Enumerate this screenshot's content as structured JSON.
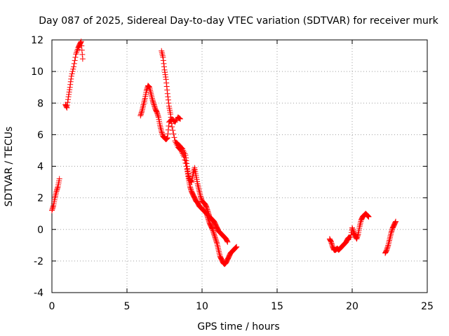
{
  "chart_data": {
    "type": "scatter",
    "title": "Day 087 of 2025, Sidereal Day-to-day VTEC variation (SDTVAR) for receiver murk",
    "xlabel": "GPS time / hours",
    "ylabel": "SDTVAR / TECUs",
    "xlim": [
      0,
      25
    ],
    "ylim": [
      -4,
      12
    ],
    "xticks": [
      0,
      5,
      10,
      15,
      20,
      25
    ],
    "yticks": [
      -4,
      -2,
      0,
      2,
      4,
      6,
      8,
      10,
      12
    ],
    "xtick_labels": [
      "0",
      "5",
      "10",
      "15",
      "20",
      "25"
    ],
    "ytick_labels": [
      "-4",
      "-2",
      "0",
      "2",
      "4",
      "6",
      "8",
      "10",
      "12"
    ],
    "grid": true,
    "marker": "plus",
    "color": "#ff0000",
    "series": [
      {
        "name": "SDTVAR",
        "segments": [
          {
            "x": [
              0.0,
              0.1,
              0.2,
              0.3,
              0.4,
              0.5
            ],
            "y": [
              1.2,
              1.5,
              2.0,
              2.4,
              2.7,
              3.2
            ]
          },
          {
            "x": [
              0.9,
              1.0,
              1.1,
              1.2,
              1.3,
              1.45,
              1.6,
              1.75,
              1.85,
              1.95,
              2.05
            ],
            "y": [
              7.9,
              7.7,
              8.4,
              9.0,
              9.7,
              10.3,
              11.1,
              11.5,
              11.7,
              11.9,
              10.8
            ]
          },
          {
            "x": [
              5.9,
              6.0,
              6.1,
              6.2,
              6.3,
              6.4,
              6.5,
              6.6,
              6.7,
              6.8,
              6.9,
              7.0,
              7.1,
              7.2,
              7.3,
              7.4,
              7.5,
              7.6,
              7.7,
              7.8,
              8.0,
              8.2,
              8.4,
              8.55
            ],
            "y": [
              7.2,
              7.5,
              7.9,
              8.3,
              8.8,
              9.1,
              9.0,
              8.6,
              8.2,
              7.9,
              7.6,
              7.4,
              7.1,
              6.6,
              6.2,
              5.9,
              5.8,
              5.7,
              5.8,
              6.8,
              7.0,
              6.8,
              7.1,
              7.0
            ]
          },
          {
            "x": [
              7.3,
              7.4,
              7.5,
              7.6,
              7.7,
              7.8,
              7.9,
              8.0,
              8.2,
              8.4,
              8.6,
              8.8,
              9.0,
              9.1,
              9.2,
              9.3,
              9.4,
              9.5,
              9.6,
              9.7,
              9.8,
              9.9,
              10.0,
              10.1,
              10.2,
              10.3,
              10.4,
              10.5,
              10.6,
              10.7,
              10.8,
              10.9,
              11.0,
              11.1,
              11.2,
              11.3,
              11.4,
              11.5,
              11.6,
              11.7,
              11.8,
              11.9,
              12.0,
              12.1,
              12.2,
              12.3
            ],
            "y": [
              11.3,
              10.9,
              10.1,
              9.5,
              8.6,
              7.8,
              7.3,
              6.5,
              5.6,
              5.2,
              5.0,
              4.6,
              3.8,
              3.2,
              2.7,
              2.4,
              2.2,
              2.0,
              1.8,
              1.7,
              1.5,
              1.4,
              1.3,
              1.2,
              1.1,
              1.0,
              0.7,
              0.4,
              0.2,
              0.0,
              -0.3,
              -0.6,
              -0.9,
              -1.3,
              -1.7,
              -1.9,
              -2.1,
              -2.2,
              -2.1,
              -1.9,
              -1.7,
              -1.5,
              -1.4,
              -1.3,
              -1.2,
              -1.1
            ]
          },
          {
            "x": [
              8.3,
              8.5,
              8.7,
              8.9,
              9.0,
              9.1,
              9.2,
              9.3,
              9.4,
              9.5,
              9.6,
              9.7,
              9.8,
              9.9,
              10.0,
              10.1,
              10.2,
              10.3,
              10.4,
              10.5,
              10.6,
              10.7,
              10.8,
              10.9,
              11.0,
              11.1,
              11.2,
              11.3,
              11.4,
              11.5,
              11.6,
              11.7
            ],
            "y": [
              5.5,
              5.3,
              5.1,
              4.7,
              4.0,
              3.4,
              3.1,
              3.0,
              3.5,
              3.9,
              3.4,
              2.9,
              2.5,
              2.1,
              1.8,
              1.7,
              1.6,
              1.4,
              1.1,
              0.8,
              0.7,
              0.6,
              0.5,
              0.3,
              0.1,
              -0.1,
              -0.2,
              -0.3,
              -0.4,
              -0.5,
              -0.6,
              -0.8
            ]
          },
          {
            "x": [
              18.5,
              18.6,
              18.7,
              18.8,
              18.9,
              19.0,
              19.1,
              19.2,
              19.3,
              19.4,
              19.5,
              19.6,
              19.7,
              19.8,
              19.9,
              20.0,
              20.1,
              20.2,
              20.3,
              20.4,
              20.5,
              20.6,
              20.7,
              20.8,
              20.9,
              21.0,
              21.1
            ],
            "y": [
              -0.6,
              -0.8,
              -1.1,
              -1.3,
              -1.3,
              -1.2,
              -1.3,
              -1.2,
              -1.1,
              -1.0,
              -0.9,
              -0.8,
              -0.6,
              -0.5,
              -0.5,
              0.1,
              -0.2,
              -0.4,
              -0.6,
              -0.3,
              0.2,
              0.6,
              0.8,
              0.9,
              1.0,
              0.9,
              0.8
            ]
          },
          {
            "x": [
              22.2,
              22.3,
              22.4,
              22.5,
              22.6,
              22.7,
              22.8,
              22.9
            ],
            "y": [
              -1.5,
              -1.3,
              -1.0,
              -0.6,
              -0.2,
              0.1,
              0.3,
              0.5
            ]
          }
        ]
      }
    ]
  }
}
